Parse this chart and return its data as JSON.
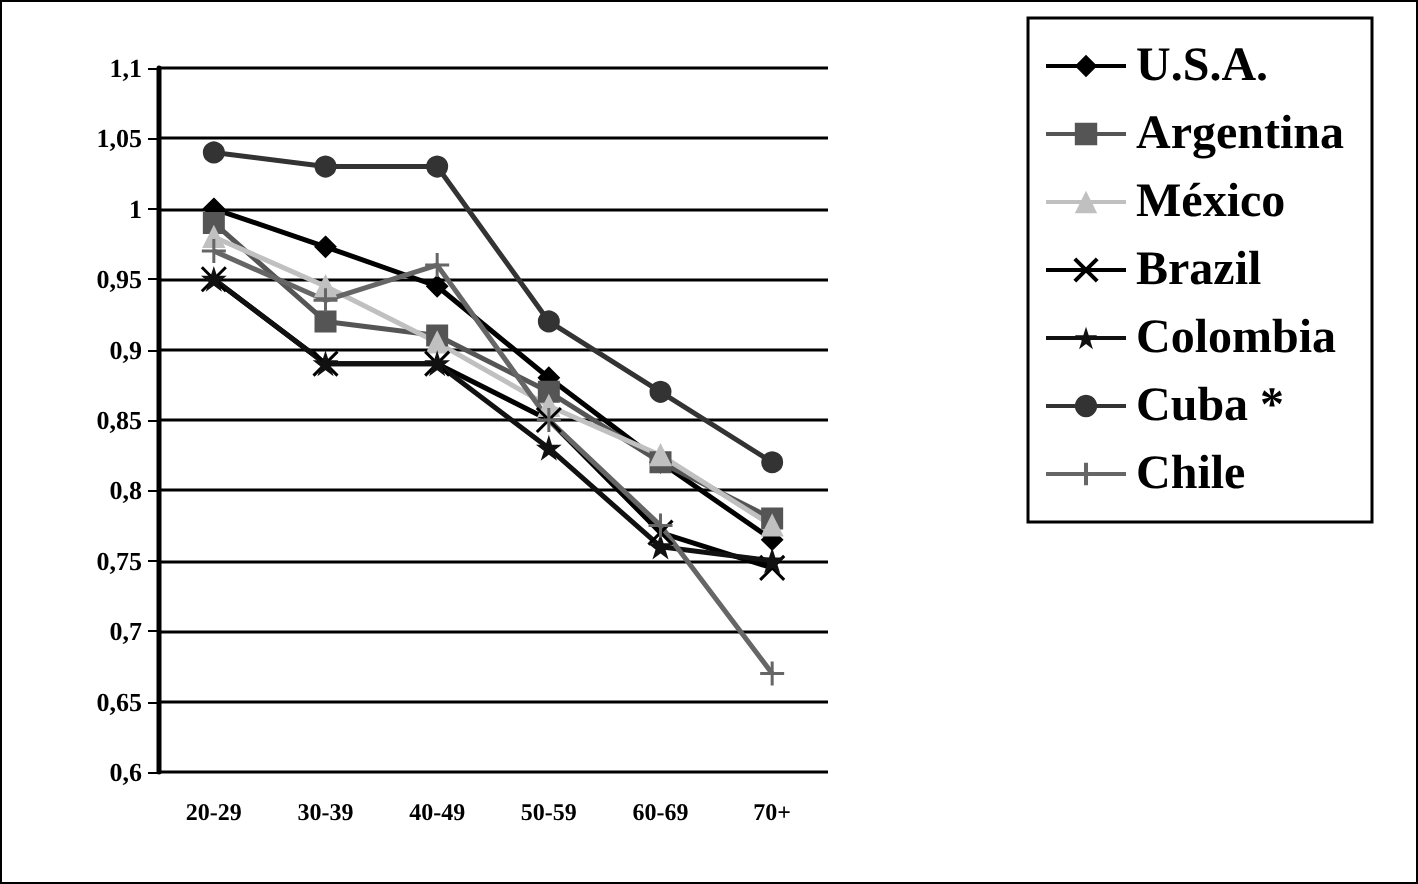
{
  "chart_data": {
    "type": "line",
    "categories": [
      "20-29",
      "30-39",
      "40-49",
      "50-59",
      "60-69",
      "70+"
    ],
    "series": [
      {
        "name": "U.S.A.",
        "color": "#000000",
        "marker": "diamond",
        "values": [
          1.0,
          0.973,
          0.945,
          0.88,
          0.82,
          0.765
        ]
      },
      {
        "name": "Argentina",
        "color": "#555555",
        "marker": "square",
        "values": [
          0.99,
          0.92,
          0.91,
          0.87,
          0.82,
          0.78
        ]
      },
      {
        "name": "México",
        "color": "#c0c0c0",
        "marker": "triangle",
        "values": [
          0.98,
          0.945,
          0.905,
          0.86,
          0.825,
          0.775
        ]
      },
      {
        "name": "Brazil",
        "color": "#000000",
        "marker": "cross",
        "values": [
          0.95,
          0.89,
          0.89,
          0.85,
          0.77,
          0.745
        ]
      },
      {
        "name": "Colombia",
        "color": "#111111",
        "marker": "star",
        "values": [
          0.95,
          0.89,
          0.89,
          0.83,
          0.76,
          0.75
        ]
      },
      {
        "name": "Cuba *",
        "color": "#333333",
        "marker": "circle",
        "values": [
          1.04,
          1.03,
          1.03,
          0.92,
          0.87,
          0.82
        ]
      },
      {
        "name": "Chile",
        "color": "#666666",
        "marker": "cross",
        "values": [
          0.97,
          0.935,
          0.96,
          0.85,
          0.775,
          0.67
        ]
      }
    ],
    "ylim": [
      0.6,
      1.1
    ],
    "yticks": [
      {
        "value": 0.6,
        "label": "0,6"
      },
      {
        "value": 0.65,
        "label": "0,65"
      },
      {
        "value": 0.7,
        "label": "0,7"
      },
      {
        "value": 0.75,
        "label": "0,75"
      },
      {
        "value": 0.8,
        "label": "0,8"
      },
      {
        "value": 0.85,
        "label": "0,85"
      },
      {
        "value": 0.9,
        "label": "0,9"
      },
      {
        "value": 0.95,
        "label": "0,95"
      },
      {
        "value": 1,
        "label": "1"
      },
      {
        "value": 1.05,
        "label": "1,05"
      },
      {
        "value": 1.1,
        "label": "1,1"
      }
    ],
    "grid": "y",
    "legend": "right",
    "line_style": "solid"
  }
}
